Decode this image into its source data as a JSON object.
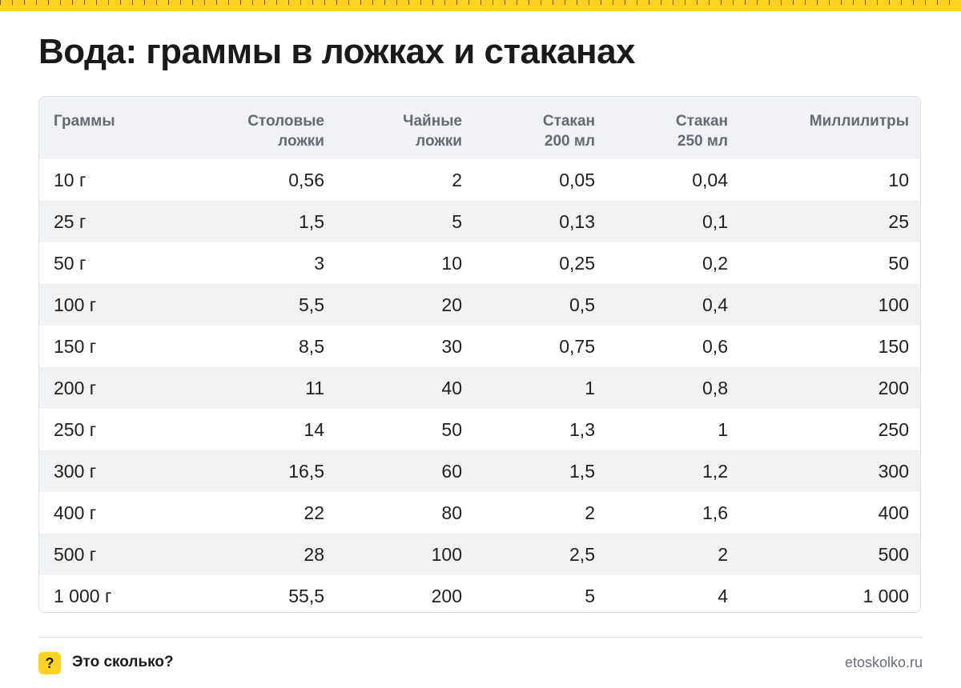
{
  "title": "Вода: граммы в ложках и стаканах",
  "table": {
    "headers": [
      "Граммы",
      "Столовые\nложки",
      "Чайные\nложки",
      "Стакан\n200 мл",
      "Стакан\n250 мл",
      "Миллилитры"
    ],
    "rows": [
      [
        "10 г",
        "0,56",
        "2",
        "0,05",
        "0,04",
        "10"
      ],
      [
        "25 г",
        "1,5",
        "5",
        "0,13",
        "0,1",
        "25"
      ],
      [
        "50 г",
        "3",
        "10",
        "0,25",
        "0,2",
        "50"
      ],
      [
        "100 г",
        "5,5",
        "20",
        "0,5",
        "0,4",
        "100"
      ],
      [
        "150 г",
        "8,5",
        "30",
        "0,75",
        "0,6",
        "150"
      ],
      [
        "200 г",
        "11",
        "40",
        "1",
        "0,8",
        "200"
      ],
      [
        "250 г",
        "14",
        "50",
        "1,3",
        "1",
        "250"
      ],
      [
        "300 г",
        "16,5",
        "60",
        "1,5",
        "1,2",
        "300"
      ],
      [
        "400 г",
        "22",
        "80",
        "2",
        "1,6",
        "400"
      ],
      [
        "500 г",
        "28",
        "100",
        "2,5",
        "2",
        "500"
      ],
      [
        "1 000 г",
        "55,5",
        "200",
        "5",
        "4",
        "1 000"
      ]
    ]
  },
  "footer": {
    "badge": "?",
    "brand": "Это сколько?",
    "site": "etoskolko.ru"
  },
  "colors": {
    "accent": "#ffd21f",
    "header_bg": "#f0f2f5",
    "stripe_bg": "#f1f2f4"
  },
  "icons": {
    "badge": "question-mark-icon"
  }
}
